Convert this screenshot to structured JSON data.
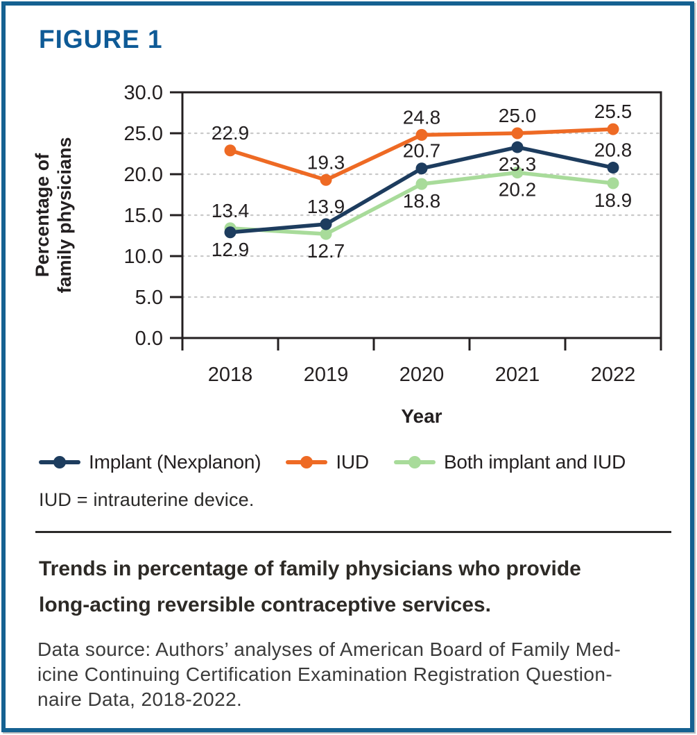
{
  "figure_label": "FIGURE 1",
  "chart_data": {
    "type": "line",
    "x": [
      "2018",
      "2019",
      "2020",
      "2021",
      "2022"
    ],
    "xlabel": "Year",
    "ylabel": "Percentage of family physicians",
    "ylabel_lines": [
      "Percentage of",
      "family physicians"
    ],
    "ylim": [
      0,
      30
    ],
    "ytick_step": 5,
    "grid": "horizontal-dotted",
    "legend_position": "below",
    "point_labels_shown": true,
    "series": [
      {
        "name": "Implant (Nexplanon)",
        "color": "#1d3c5e",
        "values": [
          12.9,
          13.9,
          20.7,
          23.3,
          20.8
        ],
        "label_pos": [
          "below",
          "above",
          "above",
          "below",
          "above"
        ]
      },
      {
        "name": "IUD",
        "color": "#ee6a24",
        "values": [
          22.9,
          19.3,
          24.8,
          25.0,
          25.5
        ],
        "label_pos": [
          "above",
          "above",
          "above",
          "above",
          "above"
        ]
      },
      {
        "name": "Both implant and IUD",
        "color": "#a8db9a",
        "values": [
          13.4,
          12.7,
          18.8,
          20.2,
          18.9
        ],
        "label_pos": [
          "above",
          "below",
          "below",
          "below",
          "below"
        ]
      }
    ]
  },
  "abbreviation_note": "IUD = intrauterine device.",
  "caption_lines": [
    "Trends in percentage of family physicians who provide",
    "long-acting reversible contraceptive services."
  ],
  "data_source_lines": [
    "Data source: Authors’ analyses of American Board of Family Med-",
    "icine Continuing Certification Examination Registration Question-",
    "naire Data, 2018-2022."
  ],
  "colors": {
    "accent_blue": "#0e5a96",
    "border_blue": "#156191",
    "text": "#231f20",
    "grid": "#c9c9c9"
  }
}
